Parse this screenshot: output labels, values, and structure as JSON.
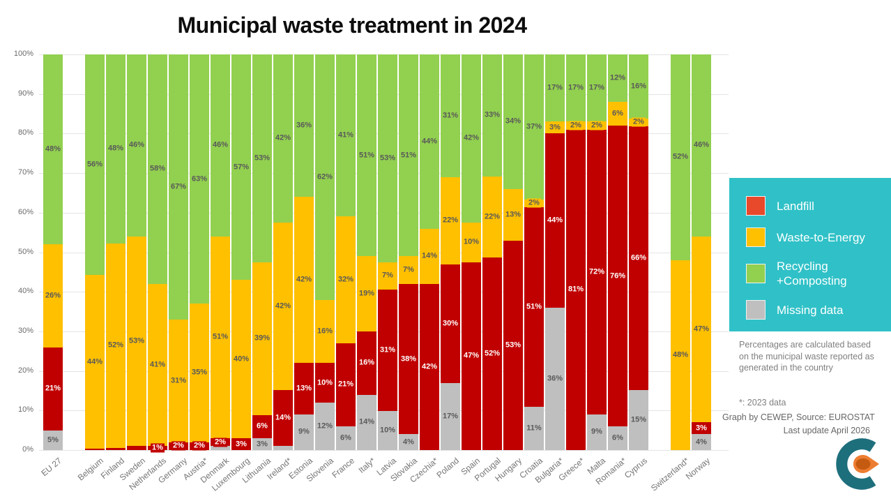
{
  "title": "Municipal waste treatment in 2024",
  "legend": {
    "background": "#2fc1c7",
    "items": [
      {
        "key": "landfill",
        "label": "Landfill",
        "color": "#e8492b"
      },
      {
        "key": "wte",
        "label": "Waste-to-Energy",
        "color": "#ffc000"
      },
      {
        "key": "recycling",
        "label": "Recycling\n+Composting",
        "color": "#92d050"
      },
      {
        "key": "missing",
        "label": "Missing data",
        "color": "#bfbfbf"
      }
    ]
  },
  "notes": {
    "calculation": "Percentages are calculated based on the municipal waste reported as generated in the country",
    "asterisk": "*: 2023 data",
    "credit": "Graph by CEWEP, Source: EUROSTAT",
    "update": "Last update April 2026"
  },
  "chart_data": {
    "type": "bar",
    "subtype": "100%-stacked-vertical",
    "title": "Municipal waste treatment in 2024",
    "stack_order_bottom_to_top": [
      "missing",
      "landfill",
      "wte",
      "recycling"
    ],
    "colors": {
      "landfill": "#c00000",
      "wte": "#ffc000",
      "recycling": "#92d050",
      "missing": "#bfbfbf"
    },
    "label_colors": {
      "landfill": "#ffffff",
      "wte": "#595959",
      "recycling": "#595959",
      "missing": "#595959"
    },
    "y_ticks": [
      "100%",
      "90%",
      "80%",
      "70%",
      "60%",
      "50%",
      "40%",
      "30%",
      "20%",
      "10%",
      "0%"
    ],
    "grid": true,
    "legend_position": "right",
    "bars": [
      {
        "country": "EU 27",
        "gap_after": true,
        "segments": [
          {
            "k": "missing",
            "v": 5,
            "t": "5%"
          },
          {
            "k": "landfill",
            "v": 21,
            "t": "21%"
          },
          {
            "k": "wte",
            "v": 26,
            "t": "26%"
          },
          {
            "k": "recycling",
            "v": 48,
            "t": "48%"
          }
        ]
      },
      {
        "country": "Belgium",
        "segments": [
          {
            "k": "landfill",
            "v": 0.4,
            "t": ""
          },
          {
            "k": "wte",
            "v": 44,
            "t": "44%"
          },
          {
            "k": "recycling",
            "v": 56,
            "t": "56%"
          }
        ]
      },
      {
        "country": "Finland",
        "segments": [
          {
            "k": "landfill",
            "v": 0.6,
            "t": ""
          },
          {
            "k": "wte",
            "v": 52,
            "t": "52%"
          },
          {
            "k": "recycling",
            "v": 48,
            "t": "48%"
          }
        ]
      },
      {
        "country": "Sweden",
        "segments": [
          {
            "k": "landfill",
            "v": 1,
            "t": ""
          },
          {
            "k": "wte",
            "v": 53,
            "t": "53%"
          },
          {
            "k": "recycling",
            "v": 46,
            "t": "46%"
          }
        ]
      },
      {
        "country": "Netherlands",
        "segments": [
          {
            "k": "landfill",
            "v": 1,
            "t": "1%"
          },
          {
            "k": "wte",
            "v": 41,
            "t": "41%"
          },
          {
            "k": "recycling",
            "v": 58,
            "t": "58%"
          }
        ]
      },
      {
        "country": "Germany",
        "segments": [
          {
            "k": "landfill",
            "v": 2,
            "t": "2%"
          },
          {
            "k": "wte",
            "v": 31,
            "t": "31%"
          },
          {
            "k": "recycling",
            "v": 67,
            "t": "67%"
          }
        ]
      },
      {
        "country": "Austria*",
        "segments": [
          {
            "k": "landfill",
            "v": 2,
            "t": "2%"
          },
          {
            "k": "wte",
            "v": 35,
            "t": "35%"
          },
          {
            "k": "recycling",
            "v": 63,
            "t": "63%"
          }
        ]
      },
      {
        "country": "Denmark",
        "segments": [
          {
            "k": "missing",
            "v": 1,
            "t": ""
          },
          {
            "k": "landfill",
            "v": 2,
            "t": "2%"
          },
          {
            "k": "wte",
            "v": 51,
            "t": "51%"
          },
          {
            "k": "recycling",
            "v": 46,
            "t": "46%"
          }
        ]
      },
      {
        "country": "Luxembourg",
        "segments": [
          {
            "k": "landfill",
            "v": 3,
            "t": "3%"
          },
          {
            "k": "wte",
            "v": 40,
            "t": "40%"
          },
          {
            "k": "recycling",
            "v": 57,
            "t": "57%"
          }
        ]
      },
      {
        "country": "Lithuania",
        "segments": [
          {
            "k": "missing",
            "v": 3,
            "t": "3%"
          },
          {
            "k": "landfill",
            "v": 6,
            "t": "6%"
          },
          {
            "k": "wte",
            "v": 39,
            "t": "39%"
          },
          {
            "k": "recycling",
            "v": 53,
            "t": "53%"
          }
        ]
      },
      {
        "country": "Ireland*",
        "segments": [
          {
            "k": "missing",
            "v": 1,
            "t": ""
          },
          {
            "k": "landfill",
            "v": 14,
            "t": "14%"
          },
          {
            "k": "wte",
            "v": 42,
            "t": "42%"
          },
          {
            "k": "recycling",
            "v": 42,
            "t": "42%"
          }
        ]
      },
      {
        "country": "Estonia",
        "segments": [
          {
            "k": "missing",
            "v": 9,
            "t": "9%"
          },
          {
            "k": "landfill",
            "v": 13,
            "t": "13%"
          },
          {
            "k": "wte",
            "v": 42,
            "t": "42%"
          },
          {
            "k": "recycling",
            "v": 36,
            "t": "36%"
          }
        ]
      },
      {
        "country": "Slovenia",
        "segments": [
          {
            "k": "missing",
            "v": 12,
            "t": "12%"
          },
          {
            "k": "landfill",
            "v": 10,
            "t": "10%"
          },
          {
            "k": "wte",
            "v": 16,
            "t": "16%"
          },
          {
            "k": "recycling",
            "v": 62,
            "t": "62%"
          }
        ]
      },
      {
        "country": "France",
        "segments": [
          {
            "k": "missing",
            "v": 6,
            "t": "6%"
          },
          {
            "k": "landfill",
            "v": 21,
            "t": "21%"
          },
          {
            "k": "wte",
            "v": 32,
            "t": "32%"
          },
          {
            "k": "recycling",
            "v": 41,
            "t": "41%"
          }
        ]
      },
      {
        "country": "Italy*",
        "segments": [
          {
            "k": "missing",
            "v": 14,
            "t": "14%"
          },
          {
            "k": "landfill",
            "v": 16,
            "t": "16%"
          },
          {
            "k": "wte",
            "v": 19,
            "t": "19%"
          },
          {
            "k": "recycling",
            "v": 51,
            "t": "51%"
          }
        ]
      },
      {
        "country": "Latvia",
        "segments": [
          {
            "k": "missing",
            "v": 10,
            "t": "10%"
          },
          {
            "k": "landfill",
            "v": 31,
            "t": "31%"
          },
          {
            "k": "wte",
            "v": 7,
            "t": "7%"
          },
          {
            "k": "recycling",
            "v": 53,
            "t": "53%"
          }
        ]
      },
      {
        "country": "Slovakia",
        "segments": [
          {
            "k": "missing",
            "v": 4,
            "t": "4%"
          },
          {
            "k": "landfill",
            "v": 38,
            "t": "38%"
          },
          {
            "k": "wte",
            "v": 7,
            "t": "7%"
          },
          {
            "k": "recycling",
            "v": 51,
            "t": "51%"
          }
        ]
      },
      {
        "country": "Czechia*",
        "segments": [
          {
            "k": "landfill",
            "v": 42,
            "t": "42%"
          },
          {
            "k": "wte",
            "v": 14,
            "t": "14%"
          },
          {
            "k": "recycling",
            "v": 44,
            "t": "44%"
          }
        ]
      },
      {
        "country": "Poland",
        "segments": [
          {
            "k": "missing",
            "v": 17,
            "t": "17%"
          },
          {
            "k": "landfill",
            "v": 30,
            "t": "30%"
          },
          {
            "k": "wte",
            "v": 22,
            "t": "22%"
          },
          {
            "k": "recycling",
            "v": 31,
            "t": "31%"
          }
        ]
      },
      {
        "country": "Spain",
        "segments": [
          {
            "k": "landfill",
            "v": 47,
            "t": "47%"
          },
          {
            "k": "wte",
            "v": 10,
            "t": "10%"
          },
          {
            "k": "recycling",
            "v": 42,
            "t": "42%"
          }
        ]
      },
      {
        "country": "Portugal",
        "segments": [
          {
            "k": "landfill",
            "v": 52,
            "t": "52%"
          },
          {
            "k": "wte",
            "v": 22,
            "t": "22%"
          },
          {
            "k": "recycling",
            "v": 33,
            "t": "33%"
          }
        ]
      },
      {
        "country": "Hungary",
        "segments": [
          {
            "k": "landfill",
            "v": 53,
            "t": "53%"
          },
          {
            "k": "wte",
            "v": 13,
            "t": "13%"
          },
          {
            "k": "recycling",
            "v": 34,
            "t": "34%"
          }
        ]
      },
      {
        "country": "Croatia",
        "segments": [
          {
            "k": "missing",
            "v": 11,
            "t": "11%"
          },
          {
            "k": "landfill",
            "v": 51,
            "t": "51%"
          },
          {
            "k": "wte",
            "v": 2,
            "t": "2%"
          },
          {
            "k": "recycling",
            "v": 37,
            "t": "37%"
          }
        ]
      },
      {
        "country": "Bulgaria*",
        "segments": [
          {
            "k": "missing",
            "v": 36,
            "t": "36%"
          },
          {
            "k": "landfill",
            "v": 44,
            "t": "44%"
          },
          {
            "k": "wte",
            "v": 3,
            "t": "3%"
          },
          {
            "k": "recycling",
            "v": 17,
            "t": "17%"
          }
        ]
      },
      {
        "country": "Greece*",
        "segments": [
          {
            "k": "landfill",
            "v": 81,
            "t": "81%"
          },
          {
            "k": "wte",
            "v": 2,
            "t": "2%"
          },
          {
            "k": "recycling",
            "v": 17,
            "t": "17%"
          }
        ]
      },
      {
        "country": "Malta",
        "segments": [
          {
            "k": "missing",
            "v": 9,
            "t": "9%"
          },
          {
            "k": "landfill",
            "v": 72,
            "t": "72%"
          },
          {
            "k": "wte",
            "v": 2,
            "t": "2%"
          },
          {
            "k": "recycling",
            "v": 17,
            "t": "17%"
          }
        ]
      },
      {
        "country": "Romania*",
        "segments": [
          {
            "k": "missing",
            "v": 6,
            "t": "6%"
          },
          {
            "k": "landfill",
            "v": 76,
            "t": "76%"
          },
          {
            "k": "wte",
            "v": 6,
            "t": "6%"
          },
          {
            "k": "recycling",
            "v": 12,
            "t": "12%"
          }
        ]
      },
      {
        "country": "Cyprus",
        "gap_after": true,
        "segments": [
          {
            "k": "missing",
            "v": 15,
            "t": "15%"
          },
          {
            "k": "landfill",
            "v": 66,
            "t": "66%"
          },
          {
            "k": "wte",
            "v": 2,
            "t": "2%"
          },
          {
            "k": "recycling",
            "v": 16,
            "t": "16%"
          }
        ]
      },
      {
        "country": "Switzerland*",
        "segments": [
          {
            "k": "wte",
            "v": 48,
            "t": "48%"
          },
          {
            "k": "recycling",
            "v": 52,
            "t": "52%"
          }
        ]
      },
      {
        "country": "Norway",
        "segments": [
          {
            "k": "missing",
            "v": 4,
            "t": "4%"
          },
          {
            "k": "landfill",
            "v": 3,
            "t": "3%"
          },
          {
            "k": "wte",
            "v": 47,
            "t": "47%"
          },
          {
            "k": "recycling",
            "v": 46,
            "t": "46%"
          }
        ]
      }
    ]
  },
  "logo": {
    "name": "CEWEP",
    "teal": "#1e6f7c",
    "orange": "#ed7d31",
    "orange_dark": "#c55a11"
  }
}
